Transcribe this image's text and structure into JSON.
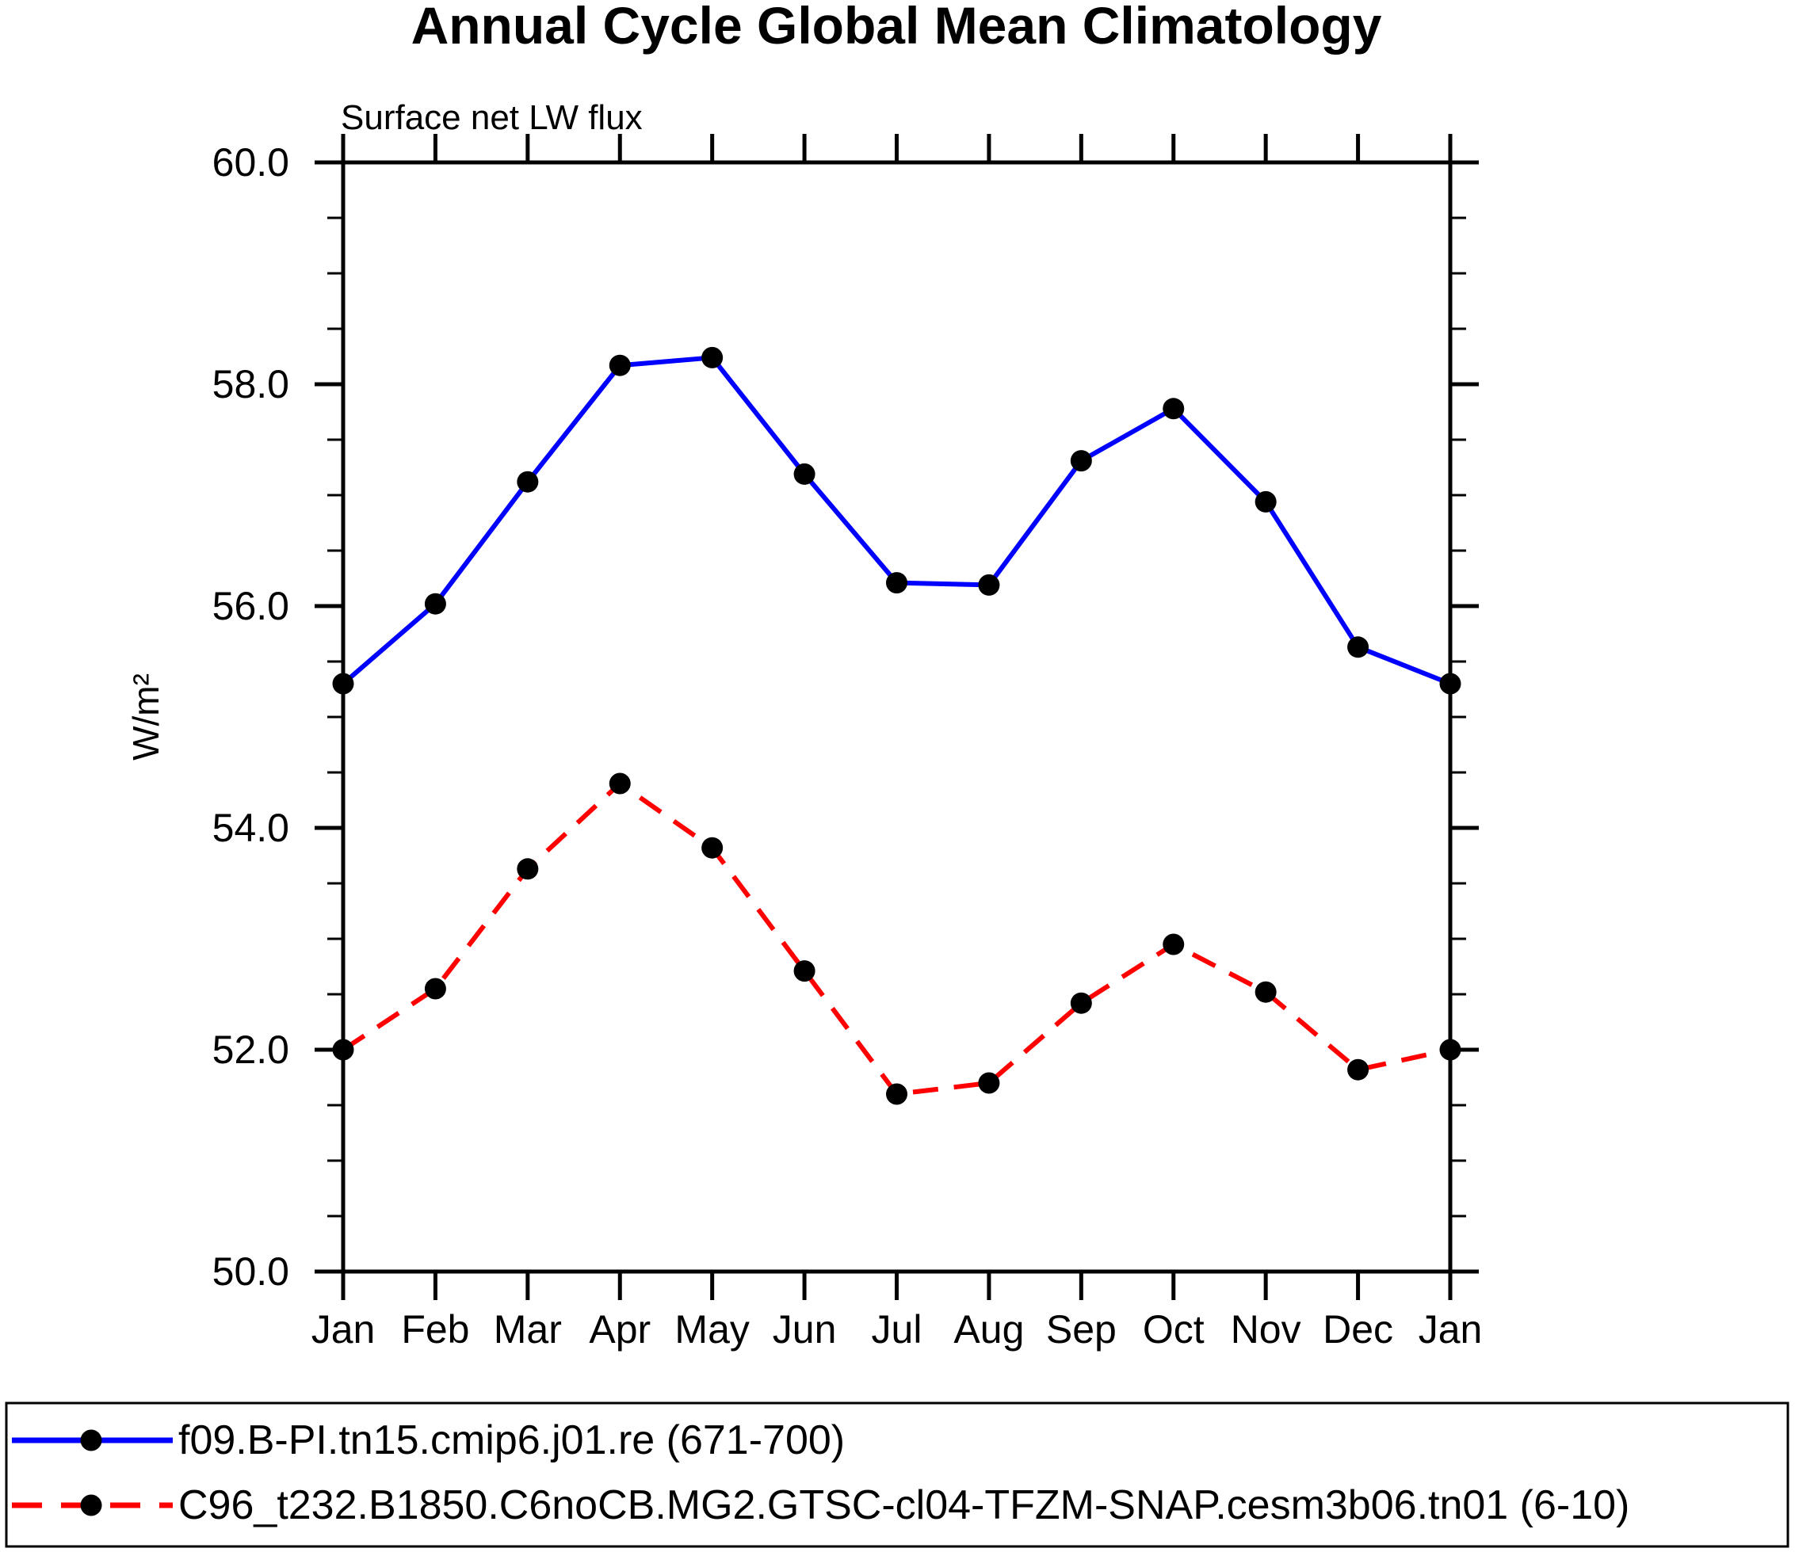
{
  "page": {
    "background": "#ffffff",
    "text_color": "#000000"
  },
  "chart_data": {
    "type": "line",
    "title": "Annual Cycle Global Mean Climatology",
    "subtitle": "Surface net LW flux",
    "ylabel": "W/m²",
    "xlabel": "",
    "categories": [
      "Jan",
      "Feb",
      "Mar",
      "Apr",
      "May",
      "Jun",
      "Jul",
      "Aug",
      "Sep",
      "Oct",
      "Nov",
      "Dec",
      "Jan"
    ],
    "ylim": [
      50.0,
      60.0
    ],
    "y_major_ticks": [
      50.0,
      52.0,
      54.0,
      56.0,
      58.0,
      60.0
    ],
    "y_tick_labels": [
      "50.0",
      "52.0",
      "54.0",
      "56.0",
      "58.0",
      "60.0"
    ],
    "y_minor_step": 0.5,
    "grid": false,
    "legend_position": "bottom",
    "axis_color": "#000000",
    "marker_color": "#000000",
    "marker_shape": "filled-circle",
    "series": [
      {
        "name": "f09.B-PI.tn15.cmip6.j01.re (671-700)",
        "color": "#0000ff",
        "line_style": "solid",
        "values": [
          55.3,
          56.02,
          57.12,
          58.17,
          58.24,
          57.19,
          56.21,
          56.19,
          57.31,
          57.78,
          56.94,
          55.63,
          55.3
        ]
      },
      {
        "name": "C96_t232.B1850.C6noCB.MG2.GTSC-cl04-TFZM-SNAP.cesm3b06.tn01 (6-10)",
        "color": "#ff0000",
        "line_style": "dashed",
        "values": [
          52.0,
          52.55,
          53.63,
          54.4,
          53.82,
          52.71,
          51.6,
          51.7,
          52.42,
          52.95,
          52.52,
          51.82,
          52.0
        ]
      }
    ]
  }
}
